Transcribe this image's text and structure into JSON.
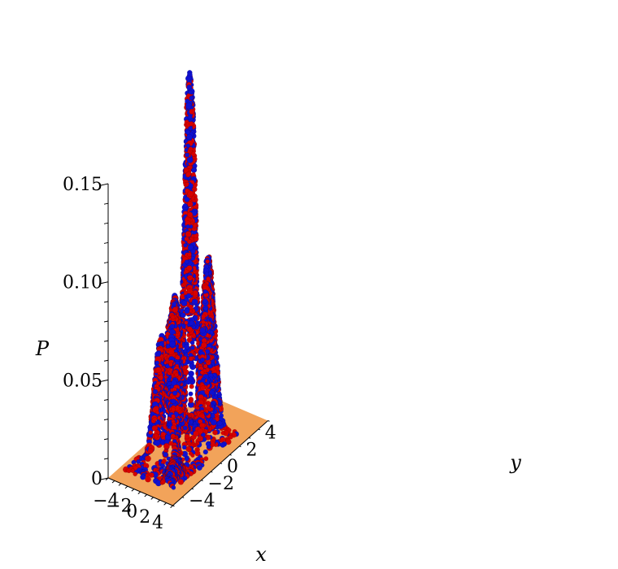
{
  "chart_data": {
    "type": "surface3d",
    "title": "",
    "xlabel": "x",
    "ylabel": "y",
    "zlabel": "P",
    "xlim": [
      -5,
      5
    ],
    "ylim": [
      -5,
      5
    ],
    "zlim": [
      0,
      0.15
    ],
    "x_ticks": [
      "-4",
      "-2",
      "0",
      "2",
      "4"
    ],
    "y_ticks": [
      "-4",
      "-2",
      "0",
      "2",
      "4"
    ],
    "z_ticks": [
      "0",
      "0.05",
      "0.10",
      "0.15"
    ],
    "grid": false,
    "legend": "none",
    "surface_color": "#f2a35a",
    "point_colors": [
      "#d60000",
      "#1010d0"
    ],
    "peaks": [
      {
        "x": -0.3,
        "y": 0.2,
        "p": 0.155
      },
      {
        "x": 0.3,
        "y": 0.3,
        "p": 0.15
      },
      {
        "x": -1.5,
        "y": -0.3,
        "p": 0.063
      },
      {
        "x": 1.5,
        "y": 1.2,
        "p": 0.076
      },
      {
        "x": -0.6,
        "y": -1.0,
        "p": 0.064
      },
      {
        "x": -2.0,
        "y": -1.6,
        "p": 0.055
      },
      {
        "x": 1.0,
        "y": -1.8,
        "p": 0.055
      },
      {
        "x": 2.0,
        "y": 0.5,
        "p": 0.05
      },
      {
        "x": 2.3,
        "y": -3.0,
        "p": 0.01
      }
    ]
  }
}
